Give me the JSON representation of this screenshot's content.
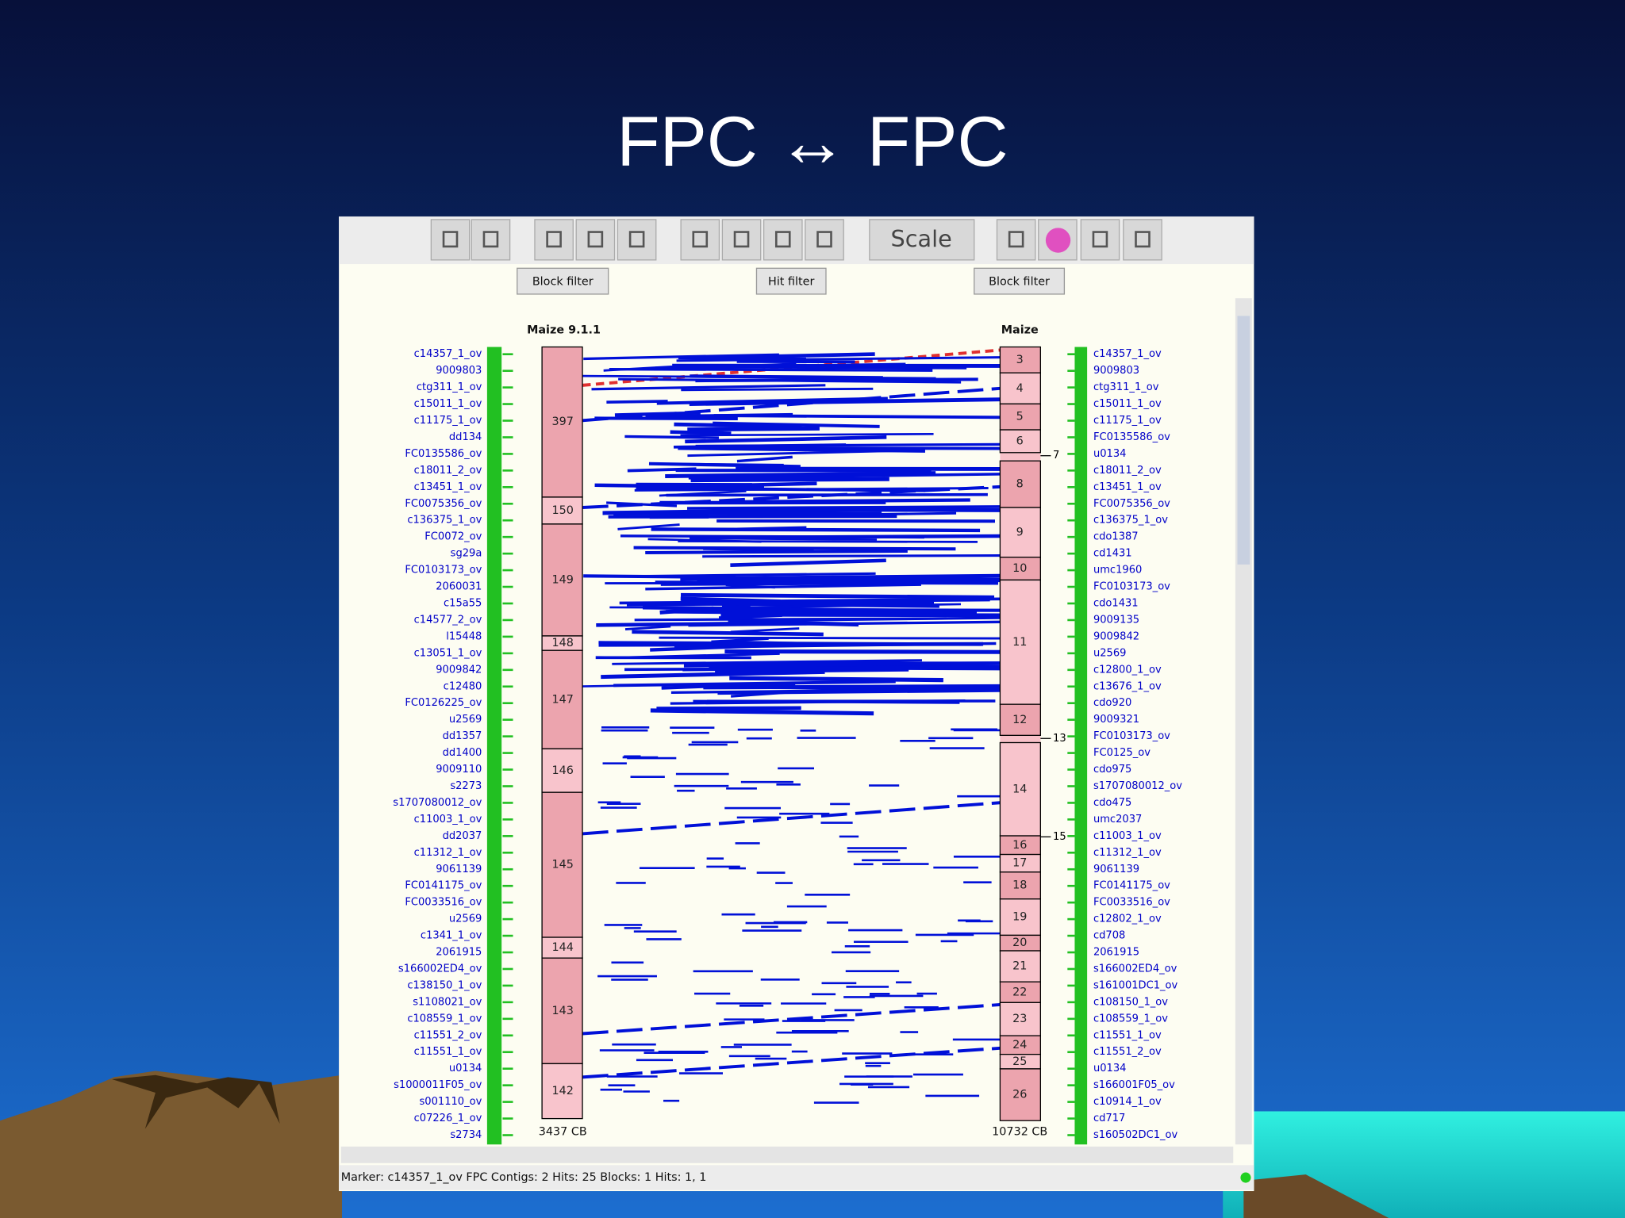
{
  "title": "FPC ↔ FPC",
  "toolbar": {
    "scale_button": "Scale"
  },
  "filters": [
    "Block filter",
    "Hit filter",
    "Block filter"
  ],
  "tracks": [
    {
      "label": "Maize 9.1.1",
      "size": "3437 CB",
      "contigs": [
        "397",
        "150",
        "149",
        "148",
        "147",
        "146",
        "145",
        "144",
        "143",
        "142"
      ],
      "markers": [
        "c14357_1_ov",
        "9009803",
        "ctg311_1_ov",
        "c15011_1_ov",
        "c11175_1_ov",
        "dd134",
        "FC0135586_ov",
        "c18011_2_ov",
        "c13451_1_ov",
        "FC0075356_ov",
        "c136375_1_ov",
        "FC0072_ov",
        "sg29a",
        "FC0103173_ov",
        "2060031",
        "c15a55",
        "c14577_2_ov",
        "l15448",
        "c13051_1_ov",
        "9009842",
        "c12480",
        "FC0126225_ov",
        "u2569",
        "dd1357",
        "dd1400",
        "9009110",
        "s2273",
        "s1707080012_ov",
        "c11003_1_ov",
        "dd2037",
        "c11312_1_ov",
        "9061139",
        "FC0141175_ov",
        "FC0033516_ov",
        "u2569",
        "c1341_1_ov",
        "2061915",
        "s166002ED4_ov",
        "c138150_1_ov",
        "s1108021_ov",
        "c108559_1_ov",
        "c11551_2_ov",
        "c11551_1_ov",
        "u0134",
        "s1000011F05_ov",
        "s001110_ov",
        "c07226_1_ov",
        "s2734"
      ]
    },
    {
      "label": "Maize",
      "size": "10732 CB",
      "contigs": [
        "3",
        "4",
        "5",
        "6",
        "8",
        "9",
        "10",
        "11",
        "12",
        "14",
        "16",
        "17",
        "18",
        "19",
        "20",
        "21",
        "22",
        "23",
        "24",
        "25",
        "26"
      ],
      "ticks": [
        "7",
        "13",
        "15"
      ],
      "markers": [
        "c14357_1_ov",
        "9009803",
        "ctg311_1_ov",
        "c15011_1_ov",
        "c11175_1_ov",
        "FC0135586_ov",
        "u0134",
        "c18011_2_ov",
        "c13451_1_ov",
        "FC0075356_ov",
        "c136375_1_ov",
        "cdo1387",
        "cd1431",
        "umc1960",
        "FC0103173_ov",
        "cdo1431",
        "9009135",
        "9009842",
        "u2569",
        "c12800_1_ov",
        "c13676_1_ov",
        "cdo920",
        "9009321",
        "FC0103173_ov",
        "FC0125_ov",
        "cdo975",
        "s1707080012_ov",
        "cdo475",
        "umc2037",
        "c11003_1_ov",
        "c11312_1_ov",
        "9061139",
        "FC0141175_ov",
        "FC0033516_ov",
        "c12802_1_ov",
        "cd708",
        "2061915",
        "s166002ED4_ov",
        "s161001DC1_ov",
        "c108150_1_ov",
        "c108559_1_ov",
        "c11551_1_ov",
        "c11551_2_ov",
        "u0134",
        "s166001F05_ov",
        "c10914_1_ov",
        "cd717",
        "s160502DC1_ov"
      ]
    }
  ],
  "status": "Marker: c14357_1_ov  FPC Contigs: 2  Hits: 25  Blocks: 1  Hits: 1, 1"
}
